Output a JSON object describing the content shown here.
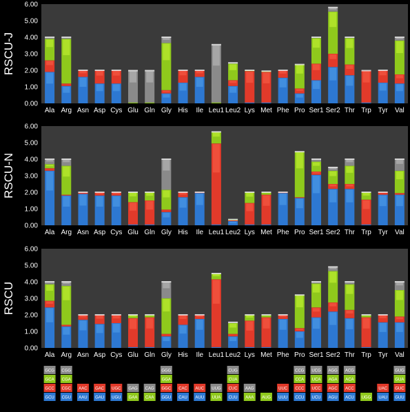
{
  "colors": {
    "background": "#000000",
    "plot_bg": "#3a3a3a",
    "gridline": "#5a5a5a",
    "codon_colors": [
      "#2d78d2",
      "#e23a2a",
      "#8fc91c",
      "#8a8a8a"
    ],
    "codon_highlights": [
      "#5ba8f0",
      "#ff6a50",
      "#d4ff3a",
      "#c8c8c8"
    ]
  },
  "chart_data": [
    {
      "type": "bar",
      "title": "",
      "ylabel": "RSCU-J",
      "ylim": [
        0,
        6
      ],
      "yticks": [
        "0.00",
        "1.00",
        "2.00",
        "3.00",
        "4.00",
        "5.00",
        "6.00"
      ],
      "stacked": true,
      "grid": false,
      "categories": [
        "Ala",
        "Arg",
        "Asn",
        "Asp",
        "Cys",
        "Glu",
        "Gln",
        "Gly",
        "His",
        "Ile",
        "Leu1",
        "Leu2",
        "Lys",
        "Met",
        "Phe",
        "Pro",
        "Ser1",
        "Ser2",
        "Thr",
        "Trp",
        "Tyr",
        "Val"
      ],
      "stacks": [
        [
          1.9,
          0.7,
          1.3,
          0.1
        ],
        [
          1.05,
          0.15,
          2.7,
          0.1
        ],
        [
          1.6,
          0.4
        ],
        [
          1.2,
          0.8
        ],
        [
          1.2,
          0.8
        ],
        [
          0.05,
          1.93
        ],
        [
          0.05,
          1.93
        ],
        [
          0.6,
          0.2,
          2.85,
          0.35
        ],
        [
          1.25,
          0.75
        ],
        [
          1.6,
          0.4
        ],
        [
          0.05,
          3.5
        ],
        [
          1.05,
          0.35,
          1.0,
          0.05
        ],
        [
          0.05,
          1.9,
          0.05
        ],
        [
          0.05,
          1.85,
          0.05
        ],
        [
          1.55,
          0.45
        ],
        [
          0.6,
          0.3,
          1.45
        ],
        [
          1.4,
          1.0,
          1.55,
          0.05
        ],
        [
          2.2,
          0.8,
          2.55,
          0.25
        ],
        [
          1.7,
          0.65,
          1.6,
          0.05
        ],
        [
          0.05,
          1.93
        ],
        [
          1.25,
          0.75
        ],
        [
          1.2,
          0.55,
          2.05,
          0.2
        ]
      ]
    },
    {
      "type": "bar",
      "title": "",
      "ylabel": "RSCU-N",
      "ylim": [
        0,
        6
      ],
      "yticks": [
        "0.00",
        "1.00",
        "2.00",
        "3.00",
        "4.00",
        "5.00",
        "6.00"
      ],
      "stacked": true,
      "grid": false,
      "categories": [
        "Ala",
        "Arg",
        "Asn",
        "Asp",
        "Cys",
        "Glu",
        "Gln",
        "Gly",
        "His",
        "Ile",
        "Leu1",
        "Leu2",
        "Lys",
        "Met",
        "Phe",
        "Pro",
        "Ser1",
        "Ser2",
        "Thr",
        "Trp",
        "Tyr",
        "Val"
      ],
      "stacks": [
        [
          3.3,
          0.15,
          0.25,
          0.3
        ],
        [
          1.8,
          0.05,
          1.75,
          0.4
        ],
        [
          1.9,
          0.1
        ],
        [
          1.8,
          0.2
        ],
        [
          1.8,
          0.2
        ],
        [
          0.05,
          1.35,
          0.6
        ],
        [
          0.05,
          1.45,
          0.5
        ],
        [
          0.8,
          0.15,
          1.2,
          1.85
        ],
        [
          1.7,
          0.3
        ],
        [
          1.95,
          0.05
        ],
        [
          0.05,
          4.9,
          0.7
        ],
        [
          0.25,
          0.05,
          0.05
        ],
        [
          0.05,
          1.3,
          0.65
        ],
        [
          0.05,
          1.8,
          0.15
        ],
        [
          1.95,
          0.05
        ],
        [
          1.65,
          0.05,
          2.75
        ],
        [
          3.05,
          0.2,
          0.6,
          0.15
        ],
        [
          2.2,
          0.3,
          0.8,
          0.2
        ],
        [
          2.2,
          0.3,
          1.1,
          0.4
        ],
        [
          0.05,
          1.5,
          0.45
        ],
        [
          1.85,
          0.15
        ],
        [
          1.85,
          0.1,
          1.35,
          0.7
        ]
      ]
    },
    {
      "type": "bar",
      "title": "",
      "ylabel": "RSCU",
      "ylim": [
        0,
        6
      ],
      "yticks": [
        "0.00",
        "1.00",
        "2.00",
        "3.00",
        "4.00",
        "5.00",
        "6.00"
      ],
      "stacked": true,
      "grid": false,
      "categories": [
        "Ala",
        "Arg",
        "Asn",
        "Asp",
        "Cys",
        "Glu",
        "Gln",
        "Gly",
        "His",
        "Ile",
        "Leu1",
        "Leu2",
        "Lys",
        "Met",
        "Phe",
        "Pro",
        "Ser1",
        "Ser2",
        "Thr",
        "Trp",
        "Tyr",
        "Val"
      ],
      "stacks": [
        [
          2.45,
          0.4,
          1.0,
          0.15
        ],
        [
          1.3,
          0.1,
          2.35,
          0.25
        ],
        [
          1.7,
          0.3
        ],
        [
          1.45,
          0.55
        ],
        [
          1.5,
          0.5
        ],
        [
          0.05,
          1.75,
          0.2
        ],
        [
          0.05,
          1.8,
          0.15
        ],
        [
          0.7,
          0.15,
          2.15,
          1.0
        ],
        [
          1.4,
          0.6
        ],
        [
          1.75,
          0.25
        ],
        [
          0.05,
          4.1,
          0.35
        ],
        [
          0.7,
          0.15,
          0.65,
          0.05
        ],
        [
          0.05,
          1.6,
          0.35
        ],
        [
          0.05,
          1.8,
          0.15
        ],
        [
          1.75,
          0.25
        ],
        [
          1.0,
          0.2,
          2.0
        ],
        [
          1.85,
          0.6,
          1.45,
          0.1
        ],
        [
          2.2,
          0.55,
          1.9,
          0.25
        ],
        [
          1.8,
          0.5,
          1.55,
          0.15
        ],
        [
          0.05,
          1.8,
          0.15
        ],
        [
          1.55,
          0.45
        ],
        [
          1.55,
          0.35,
          1.6,
          0.5
        ]
      ]
    }
  ],
  "codon_legend": [
    [
      "GCU",
      "GCC",
      "GCA",
      "GCG"
    ],
    [
      "CGU",
      "CGC",
      "CGA",
      "CGG"
    ],
    [
      "AAU",
      "AAC"
    ],
    [
      "GAU",
      "GAC"
    ],
    [
      "UGU",
      "UGC"
    ],
    [
      "GAA",
      "GAG"
    ],
    [
      "CAA",
      "CAG"
    ],
    [
      "GGU",
      "GGC",
      "GGA",
      "GGG"
    ],
    [
      "CAU",
      "CAC"
    ],
    [
      "AUU",
      "AUC"
    ],
    [
      "UUA",
      "UUG"
    ],
    [
      "CUU",
      "CUC",
      "CUA",
      "CUG"
    ],
    [
      "AAA",
      "AAG"
    ],
    [
      "AUG"
    ],
    [
      "UUU",
      "UUC"
    ],
    [
      "CCU",
      "CCC",
      "CCA",
      "CCG"
    ],
    [
      "UCU",
      "UCC",
      "UCA",
      "UCG"
    ],
    [
      "AGU",
      "AGC",
      "AGA",
      "AGG"
    ],
    [
      "ACU",
      "ACC",
      "ACA",
      "ACG"
    ],
    [
      "UGG"
    ],
    [
      "UAU",
      "UAC"
    ],
    [
      "GUU",
      "GUC",
      "GUA",
      "GUG"
    ]
  ],
  "codon_legend_colors": [
    [
      0,
      1,
      2,
      3
    ],
    [
      0,
      1,
      2,
      3
    ],
    [
      0,
      1
    ],
    [
      0,
      1
    ],
    [
      0,
      1
    ],
    [
      2,
      3
    ],
    [
      2,
      3
    ],
    [
      0,
      1,
      2,
      3
    ],
    [
      0,
      1
    ],
    [
      0,
      1
    ],
    [
      2,
      3
    ],
    [
      0,
      1,
      2,
      3
    ],
    [
      2,
      3
    ],
    [
      2
    ],
    [
      0,
      1
    ],
    [
      0,
      1,
      2,
      3
    ],
    [
      0,
      1,
      2,
      3
    ],
    [
      0,
      1,
      2,
      3
    ],
    [
      0,
      1,
      2,
      3
    ],
    [
      2
    ],
    [
      0,
      1
    ],
    [
      0,
      1,
      2,
      3
    ]
  ]
}
